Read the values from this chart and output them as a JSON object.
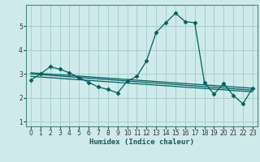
{
  "xlabel": "Humidex (Indice chaleur)",
  "bg_color": "#ceeaea",
  "line_color": "#006060",
  "grid_color": "#aacece",
  "xlim": [
    -0.5,
    23.5
  ],
  "ylim": [
    0.8,
    5.9
  ],
  "yticks": [
    1,
    2,
    3,
    4,
    5
  ],
  "xticks": [
    0,
    1,
    2,
    3,
    4,
    5,
    6,
    7,
    8,
    9,
    10,
    11,
    12,
    13,
    14,
    15,
    16,
    17,
    18,
    19,
    20,
    21,
    22,
    23
  ],
  "series": [
    {
      "x": [
        0,
        1,
        2,
        3,
        4,
        5,
        6,
        7,
        8,
        9,
        10,
        11,
        12,
        13,
        14,
        15,
        16,
        17,
        18,
        19,
        20,
        21,
        22,
        23
      ],
      "y": [
        2.75,
        3.0,
        3.3,
        3.2,
        3.05,
        2.85,
        2.65,
        2.45,
        2.35,
        2.2,
        2.7,
        2.9,
        3.55,
        4.75,
        5.15,
        5.55,
        5.2,
        5.15,
        2.65,
        2.15,
        2.6,
        2.1,
        1.75,
        2.4
      ],
      "marker": "D",
      "markersize": 2.5,
      "linewidth": 0.9
    },
    {
      "x": [
        0,
        23
      ],
      "y": [
        3.05,
        2.4
      ],
      "marker": null,
      "markersize": 0,
      "linewidth": 0.9
    },
    {
      "x": [
        0,
        23
      ],
      "y": [
        3.0,
        2.32
      ],
      "marker": null,
      "markersize": 0,
      "linewidth": 0.9
    },
    {
      "x": [
        0,
        23
      ],
      "y": [
        2.9,
        2.25
      ],
      "marker": null,
      "markersize": 0,
      "linewidth": 0.9
    }
  ]
}
